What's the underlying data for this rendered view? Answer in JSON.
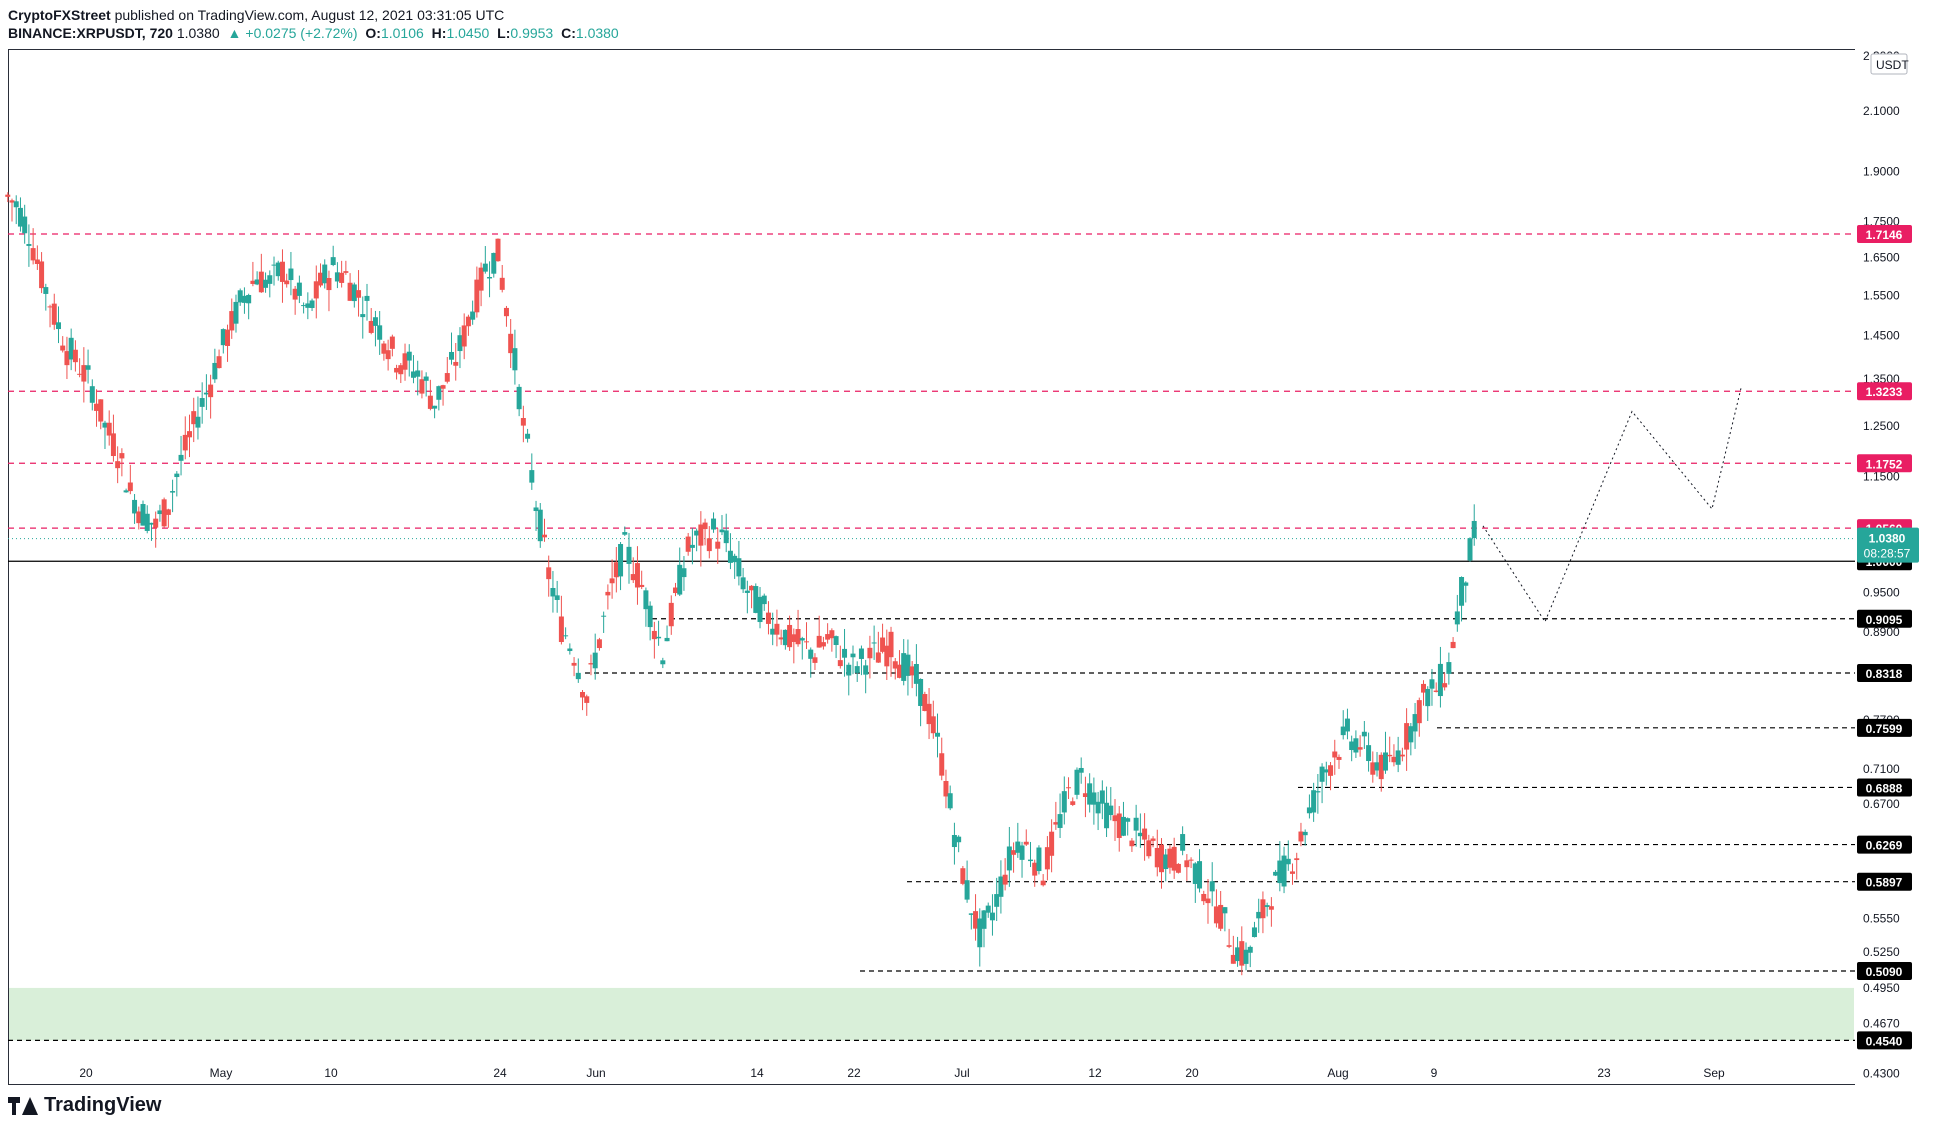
{
  "header": {
    "author": "CryptoFXStreet",
    "published": "published on TradingView.com, August 12, 2021 03:31:05 UTC",
    "symbol": "BINANCE:XRPUSDT, 720",
    "last": "1.0380",
    "change": "+0.0275 (+2.72%)",
    "o_label": "O:",
    "o_val": "1.0106",
    "h_label": "H:",
    "h_val": "1.0450",
    "l_label": "L:",
    "l_val": "0.9953",
    "c_label": "C:",
    "c_val": "1.0380"
  },
  "footer": {
    "brand": "TradingView"
  },
  "colors": {
    "up": "#26a69a",
    "down": "#ef5350",
    "resistance": "#e91e63",
    "support": "#000000",
    "demand_zone": "#d9efd9",
    "price_label": "#26a69a"
  },
  "chart_data": {
    "type": "candlestick",
    "currency_label": "USDT",
    "y_scale": "log",
    "y_ticks": [
      "2.3000",
      "2.1000",
      "1.9000",
      "1.7500",
      "1.6500",
      "1.5500",
      "1.4500",
      "1.3500",
      "1.2500",
      "1.1500",
      "1.0500",
      "0.9500",
      "0.8900",
      "0.7700",
      "0.7100",
      "0.6700",
      "0.5850",
      "0.5550",
      "0.5250",
      "0.4950",
      "0.4670",
      "0.4300"
    ],
    "x_ticks": [
      "20",
      "May",
      "10",
      "24",
      "Jun",
      "14",
      "22",
      "Jul",
      "12",
      "20",
      "Aug",
      "9",
      "23",
      "Sep"
    ],
    "resistance_levels": [
      {
        "value": 1.7146,
        "label": "1.7146"
      },
      {
        "value": 1.3233,
        "label": "1.3233"
      },
      {
        "value": 1.1752,
        "label": "1.1752"
      },
      {
        "value": 1.056,
        "label": "1.0560"
      }
    ],
    "support_levels": [
      {
        "value": 1.0,
        "label": "1.0000"
      },
      {
        "value": 0.9095,
        "label": "0.9095"
      },
      {
        "value": 0.8318,
        "label": "0.8318"
      },
      {
        "value": 0.7599,
        "label": "0.7599"
      },
      {
        "value": 0.6888,
        "label": "0.6888"
      },
      {
        "value": 0.6269,
        "label": "0.6269"
      },
      {
        "value": 0.5897,
        "label": "0.5897"
      },
      {
        "value": 0.509,
        "label": "0.5090"
      },
      {
        "value": 0.454,
        "label": "0.4540"
      }
    ],
    "current_price": {
      "value": 1.038,
      "label": "1.0380",
      "countdown": "08:28:57"
    },
    "demand_zone": {
      "low": 0.454,
      "high": 0.495
    },
    "candles_series": [
      1.8,
      1.72,
      1.6,
      1.5,
      1.42,
      1.38,
      1.33,
      1.25,
      1.2,
      1.12,
      1.08,
      1.06,
      1.1,
      1.18,
      1.25,
      1.32,
      1.4,
      1.48,
      1.55,
      1.6,
      1.58,
      1.62,
      1.56,
      1.5,
      1.58,
      1.62,
      1.6,
      1.55,
      1.5,
      1.45,
      1.4,
      1.38,
      1.35,
      1.3,
      1.35,
      1.42,
      1.52,
      1.62,
      1.66,
      1.45,
      1.25,
      1.1,
      0.98,
      0.9,
      0.86,
      0.8,
      0.88,
      0.96,
      1.02,
      0.98,
      0.92,
      0.86,
      0.94,
      1.02,
      1.04,
      1.05,
      1.03,
      0.98,
      0.94,
      0.92,
      0.9,
      0.88,
      0.87,
      0.86,
      0.88,
      0.86,
      0.84,
      0.85,
      0.86,
      0.87,
      0.84,
      0.82,
      0.78,
      0.72,
      0.64,
      0.58,
      0.54,
      0.56,
      0.6,
      0.63,
      0.62,
      0.6,
      0.64,
      0.68,
      0.7,
      0.68,
      0.66,
      0.65,
      0.64,
      0.63,
      0.62,
      0.61,
      0.62,
      0.6,
      0.58,
      0.56,
      0.53,
      0.52,
      0.55,
      0.58,
      0.6,
      0.62,
      0.66,
      0.7,
      0.73,
      0.75,
      0.74,
      0.72,
      0.71,
      0.73,
      0.76,
      0.8,
      0.81,
      0.84,
      0.95,
      1.04
    ],
    "forecast_path": [
      1.06,
      0.905,
      1.28,
      1.09,
      1.33
    ]
  }
}
